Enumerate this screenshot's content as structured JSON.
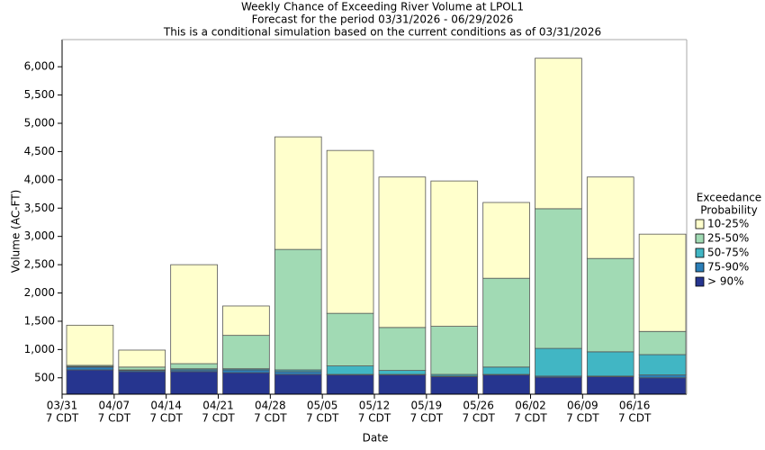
{
  "chart_data": {
    "type": "stacked_bar",
    "title": "Weekly Chance of Exceeding River Volume at LPOL1",
    "subtitle": "Forecast for the period 03/31/2026 - 06/29/2026",
    "note": "This is a conditional simulation based on the current conditions as of 03/31/2026",
    "x_label": "Date",
    "y_label": "Volume (AC-FT)",
    "xtick_labels": [
      "03/31",
      "04/07",
      "04/14",
      "04/21",
      "04/28",
      "05/05",
      "05/12",
      "05/19",
      "05/26",
      "06/02",
      "06/09",
      "06/16"
    ],
    "xtick_sublabel": "7 CDT",
    "legend_title": [
      "Exceedance",
      "Probability"
    ],
    "legend_position": "right",
    "ylim": [
      210,
      6480
    ],
    "yticks": [
      500,
      {
        "value": 1000,
        "label": "1,000"
      },
      {
        "value": 1500,
        "label": "1,500"
      },
      {
        "value": 2000,
        "label": "2,000"
      },
      {
        "value": 2500,
        "label": "2,500"
      },
      {
        "value": 3000,
        "label": "3,000"
      },
      {
        "value": 3500,
        "label": "3,500"
      },
      {
        "value": 4000,
        "label": "4,000"
      },
      {
        "value": 4500,
        "label": "4,500"
      },
      {
        "value": 5000,
        "label": "5,000"
      },
      {
        "value": 5500,
        "label": "5,500"
      },
      {
        "value": 6000,
        "label": "6,000"
      }
    ],
    "series": [
      {
        "name": "> 90%",
        "color": "#26358f",
        "values": [
          640,
          610,
          610,
          590,
          560,
          550,
          550,
          520,
          550,
          510,
          520,
          500
        ]
      },
      {
        "name": "75-90%",
        "color": "#2c7fb8",
        "values": [
          50,
          20,
          30,
          50,
          50,
          10,
          10,
          10,
          10,
          20,
          10,
          50
        ]
      },
      {
        "name": "50-75%",
        "color": "#41b6c4",
        "values": [
          10,
          10,
          20,
          20,
          30,
          150,
          70,
          30,
          130,
          490,
          430,
          360
        ]
      },
      {
        "name": "25-50%",
        "color": "#a1dab4",
        "values": [
          20,
          50,
          90,
          590,
          2130,
          930,
          760,
          850,
          1570,
          2470,
          1650,
          410
        ]
      },
      {
        "name": "10-25%",
        "color": "#ffffcc",
        "values": [
          710,
          300,
          1750,
          520,
          1990,
          2880,
          2660,
          2570,
          1340,
          2660,
          1440,
          1720
        ]
      }
    ]
  }
}
